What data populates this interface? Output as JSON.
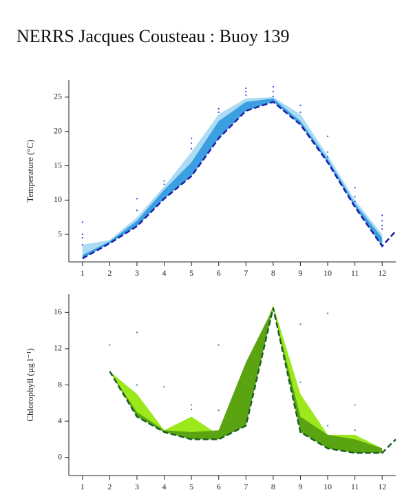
{
  "title": "NERRS Jacques Cousteau : Buoy 139",
  "chart_data": [
    {
      "type": "line",
      "ylabel": "Temperature (°C)",
      "xlim": [
        0.5,
        12.5
      ],
      "ylim": [
        1,
        27.5
      ],
      "xticks": [
        1,
        2,
        3,
        4,
        5,
        6,
        7,
        8,
        9,
        10,
        11,
        12
      ],
      "yticks": [
        5,
        10,
        15,
        20,
        25
      ],
      "series": [
        {
          "type": "area",
          "color": "#acdcf4",
          "x": [
            1,
            2,
            3,
            4,
            5,
            6,
            7,
            8,
            9,
            10,
            11,
            12
          ],
          "values": [
            3.5,
            4.2,
            7.5,
            12,
            17,
            22.5,
            24.8,
            25,
            22.5,
            16.5,
            10,
            5
          ]
        },
        {
          "type": "area",
          "color": "#3c9fe2",
          "x": [
            1,
            2,
            3,
            4,
            5,
            6,
            7,
            8,
            9,
            10,
            11,
            12
          ],
          "values": [
            2,
            4,
            7,
            11.5,
            15.5,
            21.5,
            24.3,
            24.8,
            21.5,
            16,
            9.5,
            4.5
          ]
        },
        {
          "type": "line",
          "color": "#1c1ca8",
          "dashed": true,
          "x": [
            1,
            2,
            3,
            4,
            5,
            6,
            7,
            8,
            9,
            10,
            11,
            12,
            12.5
          ],
          "values": [
            1.5,
            3.7,
            6.2,
            10.2,
            13.5,
            19,
            23,
            24.3,
            21,
            15.5,
            9,
            3.3,
            5.5
          ]
        },
        {
          "type": "scatter",
          "color": "#3048d8",
          "x": [
            1,
            1,
            1,
            1,
            3,
            3,
            4,
            4,
            5,
            5,
            5,
            6,
            6,
            7,
            7,
            7,
            8,
            8,
            8,
            9,
            9,
            10,
            10,
            10,
            11,
            11,
            11,
            12,
            12,
            12,
            12
          ],
          "values": [
            6.8,
            5,
            4.5,
            3.5,
            10.2,
            8.5,
            12.8,
            12.3,
            19,
            18.3,
            17.5,
            23.3,
            22.8,
            26.3,
            25.8,
            25.3,
            26.5,
            25.8,
            25.1,
            23.8,
            22.8,
            19.3,
            17,
            16.3,
            11.8,
            10.5,
            9.8,
            7.8,
            7,
            6.3,
            5.8
          ]
        }
      ]
    },
    {
      "type": "line",
      "ylabel": "Chlorophyll (µg l⁻¹)",
      "xlim": [
        0.5,
        12.5
      ],
      "ylim": [
        -2,
        18
      ],
      "xticks": [
        1,
        2,
        3,
        4,
        5,
        6,
        7,
        8,
        9,
        10,
        11,
        12
      ],
      "yticks": [
        0,
        4,
        8,
        12,
        16
      ],
      "series": [
        {
          "type": "area",
          "color": "#9ce81c",
          "x": [
            2,
            3,
            4,
            5,
            6,
            7,
            8,
            9,
            10,
            11,
            12
          ],
          "values": [
            9.5,
            7,
            3,
            4.5,
            2.5,
            9,
            16.8,
            7,
            2.5,
            2.5,
            1
          ]
        },
        {
          "type": "area",
          "color": "#5aa412",
          "x": [
            2,
            3,
            4,
            5,
            6,
            7,
            8,
            9,
            10,
            11,
            12
          ],
          "values": [
            9.5,
            5,
            3,
            2.8,
            3,
            10.5,
            16.5,
            4.5,
            2.5,
            2,
            1
          ]
        },
        {
          "type": "line",
          "color": "#1a5e2a",
          "dashed": true,
          "x": [
            2,
            3,
            4,
            5,
            6,
            7,
            8,
            9,
            10,
            11,
            12,
            12.5
          ],
          "values": [
            9.5,
            4.5,
            2.8,
            2,
            2,
            3.5,
            16.5,
            2.8,
            1,
            0.5,
            0.5,
            2
          ]
        },
        {
          "type": "scatter",
          "color": "#2a88a8",
          "x": [
            2,
            3,
            3,
            4,
            5,
            5,
            6,
            6,
            9,
            9,
            10,
            10,
            11,
            11
          ],
          "values": [
            12.4,
            13.8,
            8,
            7.8,
            5.8,
            5.3,
            12.4,
            5.2,
            14.7,
            8.3,
            15.9,
            3.5,
            5.8,
            3
          ]
        }
      ]
    }
  ]
}
